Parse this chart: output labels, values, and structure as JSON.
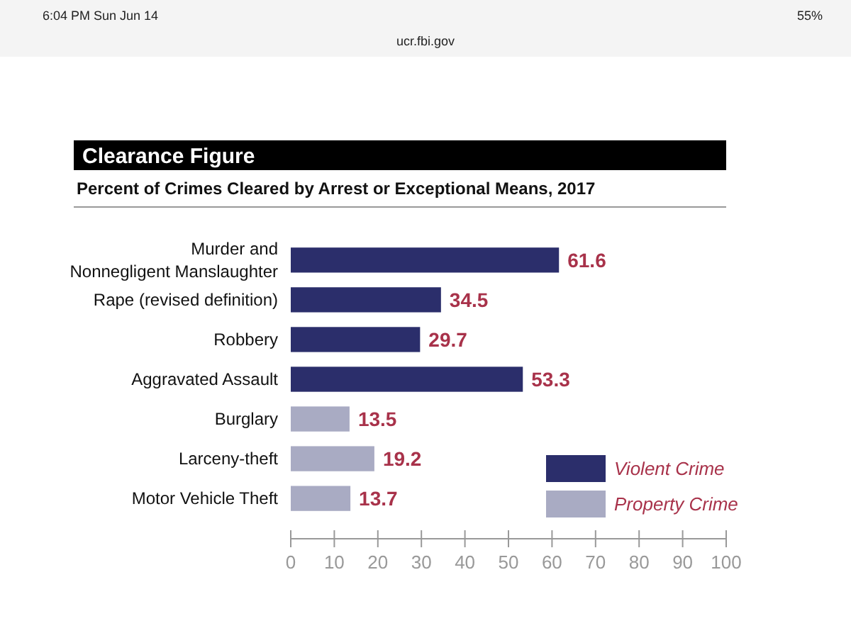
{
  "chart_data": {
    "type": "bar",
    "orientation": "horizontal",
    "title": "Clearance Figure",
    "subtitle": "Percent of Crimes Cleared by Arrest or Exceptional Means, 2017",
    "categories": [
      "Murder and Nonnegligent Manslaughter",
      "Rape (revised definition)",
      "Robbery",
      "Aggravated Assault",
      "Burglary",
      "Larceny-theft",
      "Motor Vehicle Theft"
    ],
    "series": [
      {
        "name": "Violent Crime",
        "color": "#2b2e6b",
        "values": [
          61.6,
          34.5,
          29.7,
          53.3,
          null,
          null,
          null
        ]
      },
      {
        "name": "Property Crime",
        "color": "#a9abc3",
        "values": [
          null,
          null,
          null,
          null,
          13.5,
          19.2,
          13.7
        ]
      }
    ],
    "xlim": [
      0,
      100
    ],
    "xticks": [
      0,
      10,
      20,
      30,
      40,
      50,
      60,
      70,
      80,
      90,
      100
    ],
    "data_labels": true,
    "legend": "bottom right",
    "grid": false,
    "annotations": [
      "6:04 PM  Sun Jun 14",
      "ucr.fbi.gov",
      "55%"
    ]
  }
}
